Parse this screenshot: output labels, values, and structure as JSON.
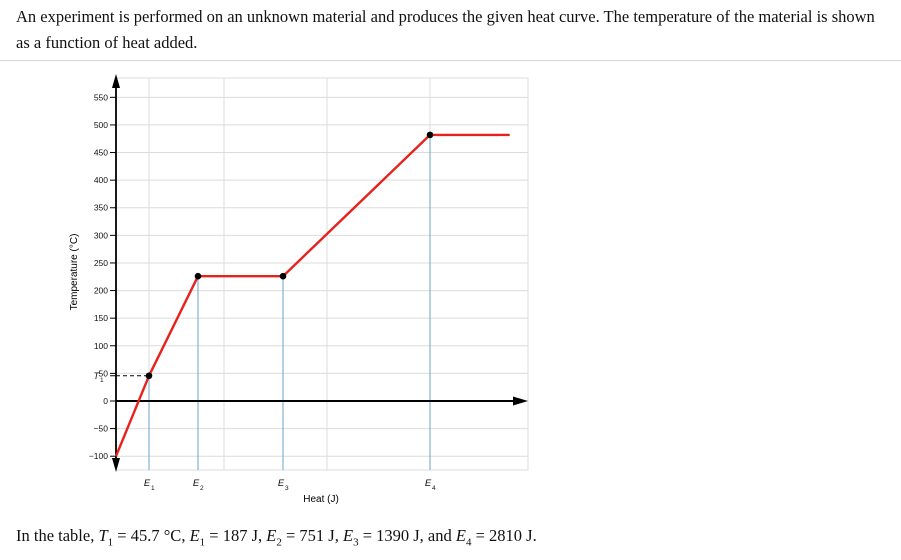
{
  "intro": "An experiment is performed on an unknown material and produces the given heat curve. The temperature of the material is shown as a function of heat added.",
  "chart_data": {
    "type": "line",
    "title": "",
    "xlabel": "Heat (J)",
    "ylabel": "Temperature (°C)",
    "ylim": [
      -125,
      585
    ],
    "yticks": [
      550,
      500,
      450,
      400,
      350,
      300,
      250,
      200,
      150,
      100,
      50,
      0,
      -50,
      -100
    ],
    "ytick_labels": [
      "550",
      "500",
      "450",
      "400",
      "350",
      "300",
      "250",
      "200",
      "150",
      "100",
      "50",
      "0",
      "−50",
      "−100"
    ],
    "xticks": [
      "E1",
      "E2",
      "E3",
      "E4"
    ],
    "xtick_values": [
      187,
      751,
      1390,
      2810
    ],
    "t1_marker": {
      "label": "T1",
      "value": 45.7
    },
    "grid": true,
    "series": [
      {
        "color": "#e8211c",
        "points": [
          [
            -220,
            -100
          ],
          [
            187,
            45.7
          ],
          [
            751,
            226
          ],
          [
            1390,
            226
          ],
          [
            2810,
            482
          ],
          [
            3580,
            482
          ]
        ]
      }
    ],
    "markers": [
      [
        187,
        45.7
      ],
      [
        751,
        226
      ],
      [
        1390,
        226
      ],
      [
        2810,
        482
      ]
    ],
    "colors": {
      "curve": "#e8211c",
      "dropline": "#6aa6c8",
      "grid": "#dcdcdc",
      "axis": "#000000"
    }
  },
  "footer": {
    "prefix": "In the table,",
    "t1_var": "T",
    "t1_sub": "1",
    "t1_val": "= 45.7 °C,",
    "e1_var": "E",
    "e1_sub": "1",
    "e1_val": "= 187 J,",
    "e2_var": "E",
    "e2_sub": "2",
    "e2_val": "= 751 J,",
    "e3_var": "E",
    "e3_sub": "3",
    "e3_val": "= 1390 J, and",
    "e4_var": "E",
    "e4_sub": "4",
    "e4_val": "= 2810 J."
  }
}
